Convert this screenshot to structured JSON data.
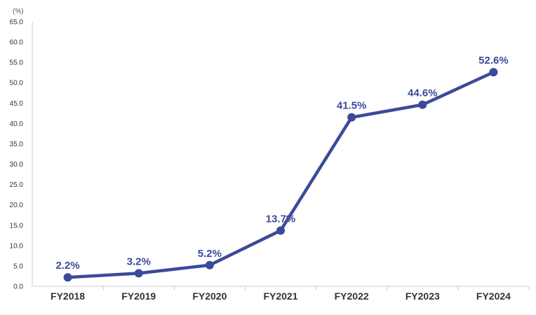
{
  "chart_data": {
    "type": "line",
    "unit_label": "(%)",
    "categories": [
      "FY2018",
      "FY2019",
      "FY2020",
      "FY2021",
      "FY2022",
      "FY2023",
      "FY2024"
    ],
    "series": [
      {
        "values": [
          2.2,
          3.2,
          5.2,
          13.7,
          41.5,
          44.6,
          52.6
        ],
        "labels": [
          "2.2%",
          "3.2%",
          "5.2%",
          "13.7%",
          "41.5%",
          "44.6%",
          "52.6%"
        ]
      }
    ],
    "yticks": [
      "0.0",
      "5.0",
      "10.0",
      "15.0",
      "20.0",
      "25.0",
      "30.0",
      "35.0",
      "40.0",
      "45.0",
      "50.0",
      "55.0",
      "60.0",
      "65.0"
    ],
    "ylim": [
      0,
      65
    ],
    "grid": false,
    "colors": {
      "line": "#3b4a9a",
      "label": "#3b4a9a",
      "axis": "#cccccc"
    }
  }
}
